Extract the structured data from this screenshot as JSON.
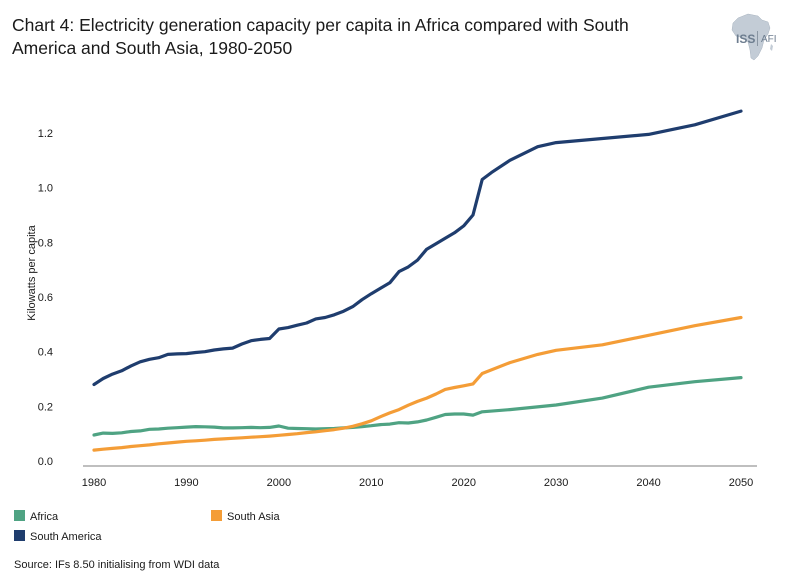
{
  "title": "Chart 4: Electricity generation capacity per capita in Africa compared with South America and South Asia, 1980-2050",
  "logo": {
    "main": "ISS",
    "sub": "AFI"
  },
  "source": "Source: IFs 8.50 initialising from WDI data",
  "colors": {
    "africa": "#4fa383",
    "south_asia": "#f49d37",
    "south_america": "#1f3d6e",
    "axis": "#7f7f7f"
  },
  "chart_data": {
    "type": "line",
    "ylabel": "Kilowatts per capita",
    "xlabel": "",
    "xlim": [
      1980,
      2050
    ],
    "ylim": [
      0,
      1.3
    ],
    "xticks": [
      1980,
      1990,
      2000,
      2010,
      2020,
      2030,
      2040,
      2050
    ],
    "xtick_labels": [
      "1980",
      "1990",
      "2000",
      "2010",
      "2020",
      "2030",
      "2040",
      "2050"
    ],
    "yticks": [
      0,
      0.2,
      0.4,
      0.6,
      0.8,
      1.0,
      1.2
    ],
    "ytick_labels": [
      "0.0",
      "0.2",
      "0.4",
      "0.6",
      "0.8",
      "1.0",
      "1.2"
    ],
    "series": [
      {
        "key": "africa",
        "name": "Africa",
        "x": [
          1980,
          1981,
          1982,
          1983,
          1984,
          1985,
          1986,
          1987,
          1988,
          1989,
          1990,
          1991,
          1992,
          1993,
          1994,
          1995,
          1996,
          1997,
          1998,
          1999,
          2000,
          2001,
          2002,
          2003,
          2004,
          2005,
          2006,
          2007,
          2008,
          2009,
          2010,
          2011,
          2012,
          2013,
          2014,
          2015,
          2016,
          2017,
          2018,
          2019,
          2020,
          2021,
          2022,
          2025,
          2030,
          2035,
          2040,
          2045,
          2050
        ],
        "y": [
          0.095,
          0.102,
          0.101,
          0.103,
          0.108,
          0.11,
          0.116,
          0.117,
          0.12,
          0.122,
          0.124,
          0.126,
          0.125,
          0.124,
          0.121,
          0.121,
          0.122,
          0.123,
          0.122,
          0.123,
          0.128,
          0.12,
          0.119,
          0.118,
          0.117,
          0.118,
          0.119,
          0.121,
          0.123,
          0.126,
          0.129,
          0.133,
          0.135,
          0.14,
          0.139,
          0.143,
          0.15,
          0.16,
          0.17,
          0.172,
          0.172,
          0.168,
          0.18,
          0.188,
          0.205,
          0.23,
          0.27,
          0.29,
          0.305
        ]
      },
      {
        "key": "south_asia",
        "name": "South Asia",
        "x": [
          1980,
          1981,
          1982,
          1983,
          1984,
          1985,
          1986,
          1987,
          1988,
          1989,
          1990,
          1991,
          1992,
          1993,
          1994,
          1995,
          1996,
          1997,
          1998,
          1999,
          2000,
          2001,
          2002,
          2003,
          2004,
          2005,
          2006,
          2007,
          2008,
          2009,
          2010,
          2011,
          2012,
          2013,
          2014,
          2015,
          2016,
          2017,
          2018,
          2019,
          2020,
          2021,
          2022,
          2025,
          2028,
          2030,
          2035,
          2040,
          2045,
          2050
        ],
        "y": [
          0.04,
          0.043,
          0.046,
          0.049,
          0.053,
          0.056,
          0.059,
          0.063,
          0.066,
          0.069,
          0.072,
          0.074,
          0.076,
          0.079,
          0.081,
          0.083,
          0.085,
          0.087,
          0.089,
          0.091,
          0.094,
          0.097,
          0.1,
          0.104,
          0.107,
          0.111,
          0.115,
          0.12,
          0.127,
          0.136,
          0.147,
          0.162,
          0.176,
          0.188,
          0.204,
          0.218,
          0.23,
          0.245,
          0.262,
          0.269,
          0.275,
          0.282,
          0.32,
          0.36,
          0.39,
          0.405,
          0.425,
          0.46,
          0.495,
          0.525
        ]
      },
      {
        "key": "south_america",
        "name": "South America",
        "x": [
          1980,
          1981,
          1982,
          1983,
          1984,
          1985,
          1986,
          1987,
          1988,
          1989,
          1990,
          1991,
          1992,
          1993,
          1994,
          1995,
          1996,
          1997,
          1998,
          1999,
          2000,
          2001,
          2002,
          2003,
          2004,
          2005,
          2006,
          2007,
          2008,
          2009,
          2010,
          2011,
          2012,
          2013,
          2014,
          2015,
          2016,
          2017,
          2018,
          2019,
          2020,
          2021,
          2022,
          2023,
          2025,
          2028,
          2030,
          2035,
          2040,
          2045,
          2050
        ],
        "y": [
          0.28,
          0.302,
          0.318,
          0.33,
          0.348,
          0.363,
          0.372,
          0.378,
          0.39,
          0.392,
          0.393,
          0.397,
          0.4,
          0.406,
          0.41,
          0.413,
          0.428,
          0.44,
          0.445,
          0.448,
          0.483,
          0.488,
          0.497,
          0.505,
          0.52,
          0.525,
          0.535,
          0.548,
          0.565,
          0.59,
          0.612,
          0.632,
          0.652,
          0.693,
          0.71,
          0.735,
          0.775,
          0.795,
          0.815,
          0.835,
          0.86,
          0.9,
          1.03,
          1.055,
          1.1,
          1.15,
          1.165,
          1.18,
          1.195,
          1.23,
          1.28
        ]
      }
    ],
    "legend": [
      {
        "key": "africa",
        "label": "Africa"
      },
      {
        "key": "south_asia",
        "label": "South Asia"
      },
      {
        "key": "south_america",
        "label": "South America"
      }
    ]
  }
}
